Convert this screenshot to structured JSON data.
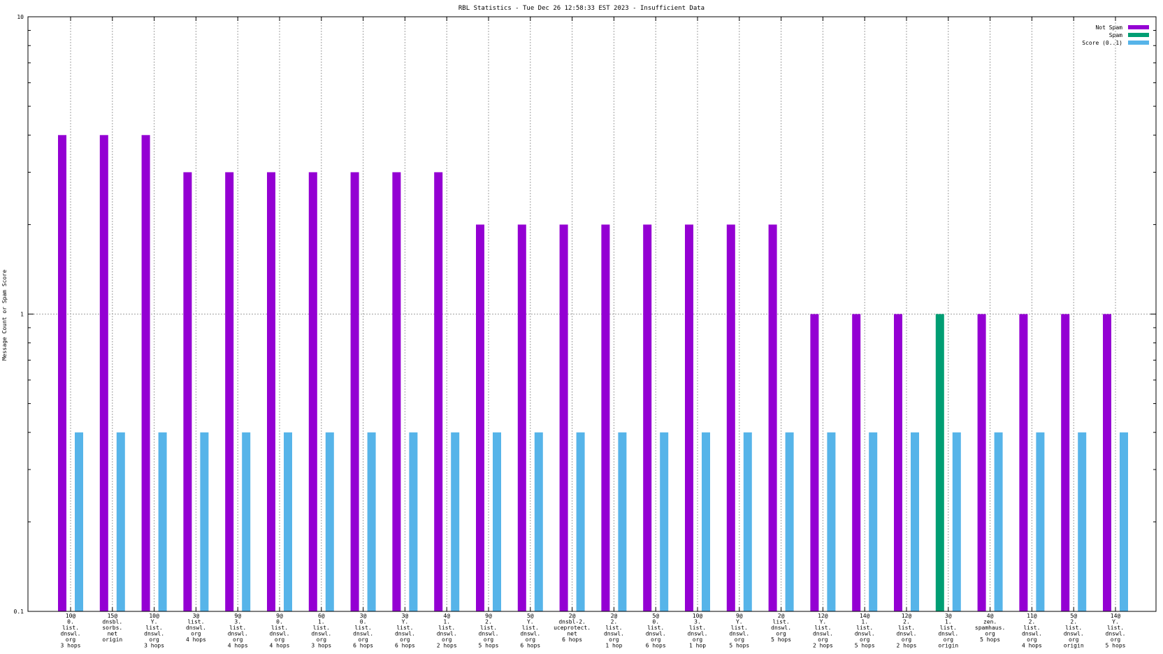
{
  "chart_data": {
    "type": "bar",
    "title": "RBL Statistics - Tue Dec 26 12:58:33 EST 2023 - Insufficient Data",
    "xlabel": "",
    "ylabel": "Message Count or Spam Score",
    "yscale": "log",
    "ylim": [
      0.1,
      10
    ],
    "yticks": [
      "0.1",
      "1",
      "10"
    ],
    "grid": true,
    "legend_position": "top-right",
    "categories": [
      [
        "10@",
        "0.",
        "list.",
        "dnswl.",
        "org",
        "3 hops"
      ],
      [
        "15@",
        "dnsbl.",
        "sorbs.",
        "net",
        "origin"
      ],
      [
        "10@",
        "Y.",
        "list.",
        "dnswl.",
        "org",
        "3 hops"
      ],
      [
        "3@",
        "list.",
        "dnswl.",
        "org",
        "4 hops"
      ],
      [
        "9@",
        "3.",
        "list.",
        "dnswl.",
        "org",
        "4 hops"
      ],
      [
        "9@",
        "0.",
        "list.",
        "dnswl.",
        "org",
        "4 hops"
      ],
      [
        "6@",
        "1.",
        "list.",
        "dnswl.",
        "org",
        "3 hops"
      ],
      [
        "3@",
        "0.",
        "list.",
        "dnswl.",
        "org",
        "6 hops"
      ],
      [
        "3@",
        "Y.",
        "list.",
        "dnswl.",
        "org",
        "6 hops"
      ],
      [
        "4@",
        "1.",
        "list.",
        "dnswl.",
        "org",
        "2 hops"
      ],
      [
        "9@",
        "2.",
        "list.",
        "dnswl.",
        "org",
        "5 hops"
      ],
      [
        "5@",
        "Y.",
        "list.",
        "dnswl.",
        "org",
        "6 hops"
      ],
      [
        "2@",
        "dnsbl-2.",
        "uceprotect.",
        "net",
        "6 hops"
      ],
      [
        "2@",
        "2.",
        "list.",
        "dnswl.",
        "org",
        "1 hop"
      ],
      [
        "5@",
        "0.",
        "list.",
        "dnswl.",
        "org",
        "6 hops"
      ],
      [
        "10@",
        "3.",
        "list.",
        "dnswl.",
        "org",
        "1 hop"
      ],
      [
        "9@",
        "Y.",
        "list.",
        "dnswl.",
        "org",
        "5 hops"
      ],
      [
        "2@",
        "list.",
        "dnswl.",
        "org",
        "5 hops"
      ],
      [
        "12@",
        "Y.",
        "list.",
        "dnswl.",
        "org",
        "2 hops"
      ],
      [
        "14@",
        "1.",
        "list.",
        "dnswl.",
        "org",
        "5 hops"
      ],
      [
        "12@",
        "2.",
        "list.",
        "dnswl.",
        "org",
        "2 hops"
      ],
      [
        "3@",
        "1.",
        "list.",
        "dnswl.",
        "org",
        "origin"
      ],
      [
        "4@",
        "zen.",
        "spamhaus.",
        "org",
        "5 hops"
      ],
      [
        "11@",
        "2.",
        "list.",
        "dnswl.",
        "org",
        "4 hops"
      ],
      [
        "5@",
        "2.",
        "list.",
        "dnswl.",
        "org",
        "origin"
      ],
      [
        "14@",
        "Y.",
        "list.",
        "dnswl.",
        "org",
        "5 hops"
      ]
    ],
    "series": [
      {
        "name": "Not Spam",
        "color": "#9400d3",
        "values": [
          4,
          4,
          4,
          3,
          3,
          3,
          3,
          3,
          3,
          3,
          2,
          2,
          2,
          2,
          2,
          2,
          2,
          2,
          1,
          1,
          1,
          null,
          1,
          1,
          1,
          1
        ]
      },
      {
        "name": "Spam",
        "color": "#009e73",
        "values": [
          null,
          null,
          null,
          null,
          null,
          null,
          null,
          null,
          null,
          null,
          null,
          null,
          null,
          null,
          null,
          null,
          null,
          null,
          null,
          null,
          null,
          1,
          null,
          null,
          null,
          null
        ]
      },
      {
        "name": "Score (0..1)",
        "color": "#56b4e9",
        "values": [
          0.4,
          0.4,
          0.4,
          0.4,
          0.4,
          0.4,
          0.4,
          0.4,
          0.4,
          0.4,
          0.4,
          0.4,
          0.4,
          0.4,
          0.4,
          0.4,
          0.4,
          0.4,
          0.4,
          0.4,
          0.4,
          0.4,
          0.4,
          0.4,
          0.4,
          0.4
        ]
      }
    ]
  }
}
